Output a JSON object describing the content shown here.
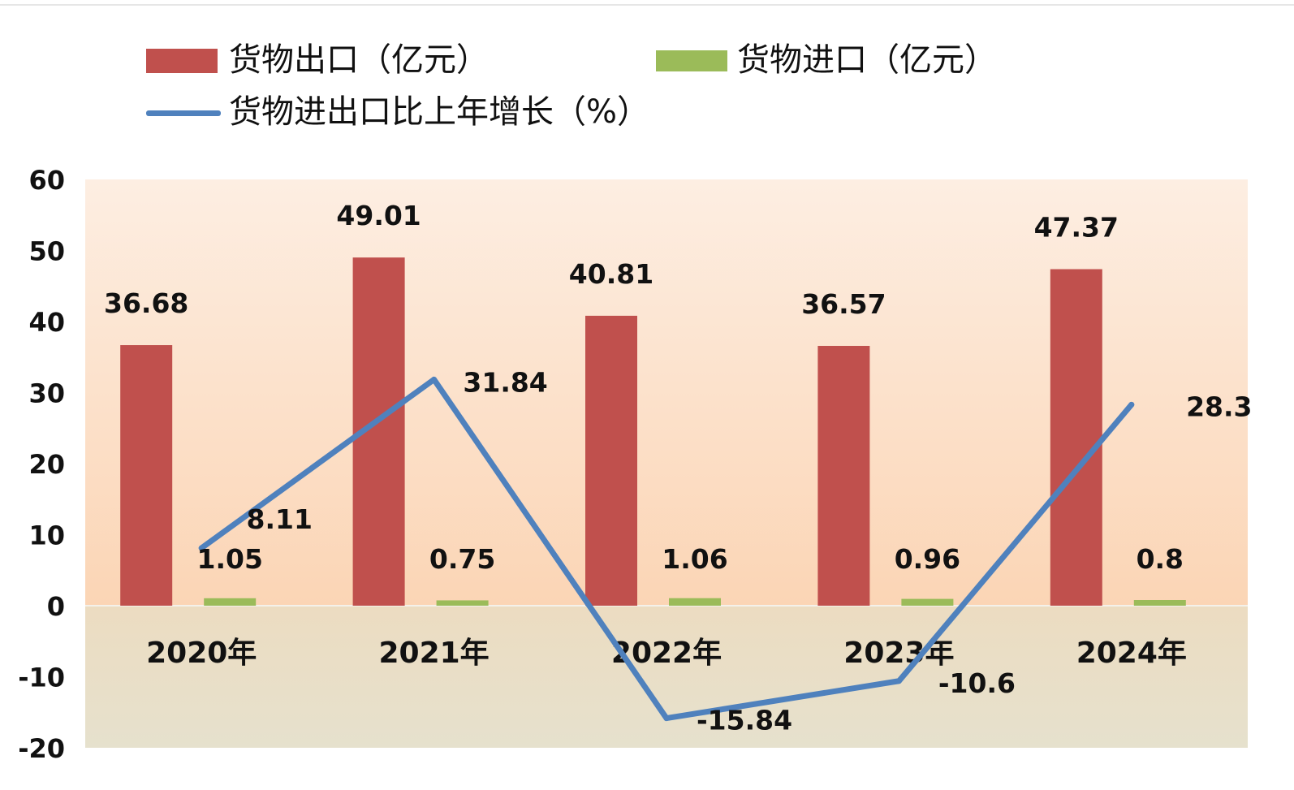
{
  "chart_data": {
    "type": "bar",
    "categories": [
      "2020年",
      "2021年",
      "2022年",
      "2023年",
      "2024年"
    ],
    "series": [
      {
        "name": "货物出口（亿元）",
        "type": "bar",
        "color": "#c0504d",
        "values": [
          36.68,
          49.01,
          40.81,
          36.57,
          47.37
        ],
        "labels": [
          "36.68",
          "49.01",
          "40.81",
          "36.57",
          "47.37"
        ]
      },
      {
        "name": "货物进口（亿元）",
        "type": "bar",
        "color": "#9bbb59",
        "values": [
          1.05,
          0.75,
          1.06,
          0.96,
          0.8
        ],
        "labels": [
          "1.05",
          "0.75",
          "1.06",
          "0.96",
          "0.8"
        ]
      },
      {
        "name": "货物进出口比上年增长（%）",
        "type": "line",
        "color": "#4f81bd",
        "values": [
          8.11,
          31.84,
          -15.84,
          -10.6,
          28.3
        ],
        "labels": [
          "8.11",
          "31.84",
          "-15.84",
          "-10.6",
          "28.3"
        ]
      }
    ],
    "ylim": [
      -20,
      60
    ],
    "yticks": [
      "-20",
      "-10",
      "0",
      "10",
      "20",
      "30",
      "40",
      "50",
      "60"
    ],
    "legend_position": "top",
    "grid": false
  }
}
